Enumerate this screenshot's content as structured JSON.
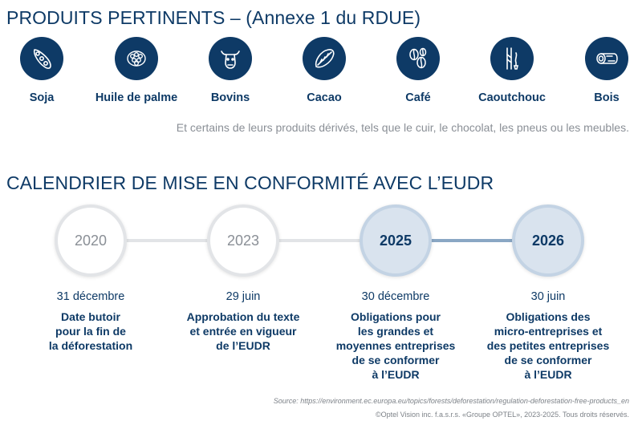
{
  "section_products": {
    "title": "PRODUITS PERTINENTS – (Annexe 1 du RDUE)",
    "items": [
      {
        "label": "Soja",
        "icon": "soy-icon"
      },
      {
        "label": "Huile de palme",
        "icon": "palm-oil-icon"
      },
      {
        "label": "Bovins",
        "icon": "cattle-icon"
      },
      {
        "label": "Cacao",
        "icon": "cocoa-icon"
      },
      {
        "label": "Café",
        "icon": "coffee-icon"
      },
      {
        "label": "Caoutchouc",
        "icon": "rubber-icon"
      },
      {
        "label": "Bois",
        "icon": "wood-icon"
      }
    ],
    "derived_note": "Et certains de leurs produits dérivés, tels que le cuir, le chocolat, les pneus ou les meubles."
  },
  "section_calendar": {
    "title": "CALENDRIER DE MISE EN CONFORMITÉ AVEC L’EUDR",
    "milestones": [
      {
        "year": "2020",
        "date": "31 décembre",
        "description": "Date butoir\npour la fin de\nla déforestation",
        "status": "past"
      },
      {
        "year": "2023",
        "date": "29 juin",
        "description": "Approbation du texte\net entrée en vigueur\nde l’EUDR",
        "status": "past"
      },
      {
        "year": "2025",
        "date": "30 décembre",
        "description": "Obligations pour\nles grandes et\nmoyennes entreprises\nde se conformer\nà l’EUDR",
        "status": "future"
      },
      {
        "year": "2026",
        "date": "30 juin",
        "description": "Obligations des\nmicro-entreprises et\ndes petites entreprises\nde se conformer\nà l’EUDR",
        "status": "future"
      }
    ]
  },
  "footer": {
    "source": "Source: https://environment.ec.europa.eu/topics/forests/deforestation/regulation-deforestation-free-products_en",
    "copyright": "©Optel Vision inc. f.a.s.r.s. «Groupe OPTEL», 2023-2025. Tous droits réservés."
  },
  "colors": {
    "navy": "#0e3a66",
    "grey_text": "#8a8f96",
    "line_past": "#e2e4e7",
    "line_future": "#8aa7c4",
    "node_future_fill": "#d9e3ee"
  }
}
